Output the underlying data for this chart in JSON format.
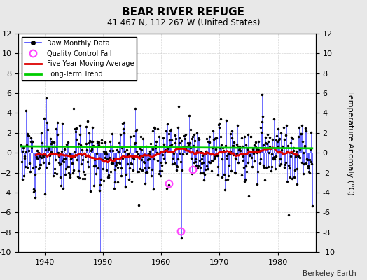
{
  "title": "BEAR RIVER REFUGE",
  "subtitle": "41.467 N, 112.267 W (United States)",
  "ylabel": "Temperature Anomaly (°C)",
  "credit": "Berkeley Earth",
  "ylim": [
    -10,
    12
  ],
  "xlim": [
    1935.5,
    1986.5
  ],
  "xticks": [
    1940,
    1950,
    1960,
    1970,
    1980
  ],
  "yticks": [
    -10,
    -8,
    -6,
    -4,
    -2,
    0,
    2,
    4,
    6,
    8,
    10,
    12
  ],
  "bg_color": "#e8e8e8",
  "plot_bg_color": "#ffffff",
  "raw_line_color": "#4444ff",
  "raw_dot_color": "#000000",
  "qc_fail_color": "#ff44ff",
  "moving_avg_color": "#dd0000",
  "trend_color": "#00cc00",
  "seed": 12,
  "n_years_start": 1936,
  "n_years_end": 1985,
  "long_term_slope": -0.004,
  "trend_intercept": 0.55,
  "qc_fail_times": [
    1961.3,
    1965.5
  ],
  "qc_fail_vals": [
    -3.1,
    -1.7
  ],
  "outlier_1949_val": -10.1,
  "outlier_1963_val": -8.6,
  "qc_1963_val": -7.9
}
